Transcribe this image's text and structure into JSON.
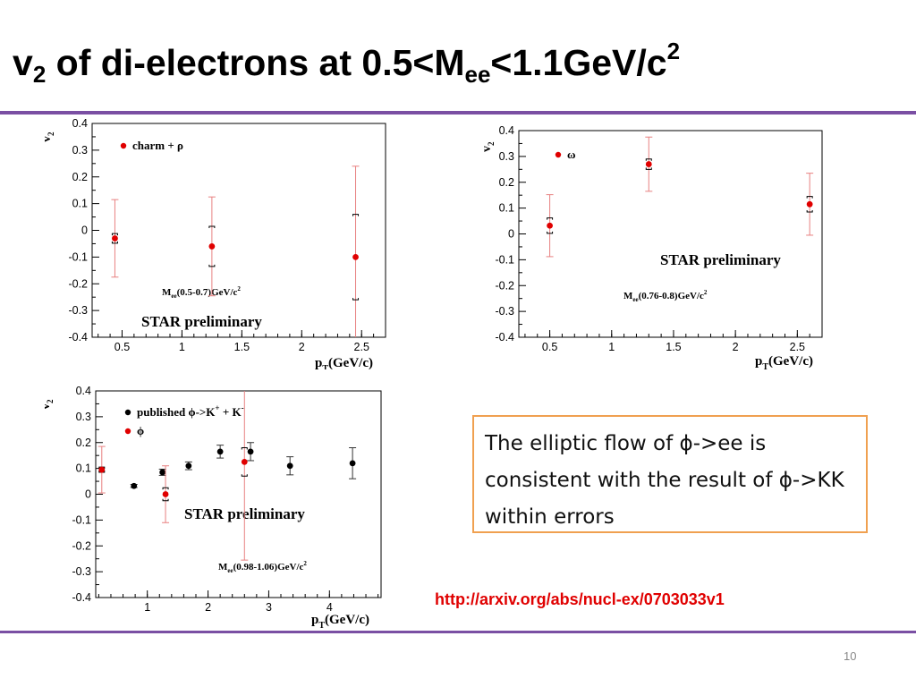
{
  "title": {
    "prefix": "v",
    "prefix_sub": "2",
    "mid": " of di-electrons at 0.5<M",
    "mid_sub": "ee",
    "end": "<1.1GeV/c",
    "end_sup": "2"
  },
  "note": {
    "text": "The elliptic flow of ϕ->ee is consistent with the result of ϕ->KK within errors"
  },
  "reference": {
    "url": "http://arxiv.org/abs/nucl-ex/0703033v1"
  },
  "page_number": "10",
  "colors": {
    "rule": "#7a4fa3",
    "red_marker": "#e00000",
    "black_marker": "#000000",
    "note_border": "#f0a050",
    "link": "#e00000"
  },
  "chart_data": [
    {
      "id": "charm-rho",
      "type": "scatter",
      "ylabel_main": "v",
      "ylabel_sub": "2",
      "xlabel_main": "p",
      "xlabel_sub": "T",
      "xlabel_rest": "(GeV/c)",
      "xlim": [
        0.25,
        2.7
      ],
      "ylim": [
        -0.4,
        0.4
      ],
      "xticks": [
        0.5,
        1,
        1.5,
        2,
        2.5
      ],
      "xtick_labels": [
        "0.5",
        "1",
        "1.5",
        "2",
        "2.5"
      ],
      "yticks": [
        -0.4,
        -0.3,
        -0.2,
        -0.1,
        0,
        0.1,
        0.2,
        0.3,
        0.4
      ],
      "ytick_labels": [
        "-0.4",
        "-0.3",
        "-0.2",
        "-0.1",
        "0",
        "0.1",
        "0.2",
        "0.3",
        "0.4"
      ],
      "legend": [
        {
          "label": "charm + ρ",
          "color": "#e00000"
        }
      ],
      "mass_label": {
        "pre": "M",
        "sub": "ee",
        "post": "(0.5-0.7)GeV/c",
        "sup": "2"
      },
      "star_label": "STAR preliminary",
      "series": [
        {
          "name": "charm + ρ",
          "color": "#e00000",
          "x": [
            0.44,
            1.25,
            2.45
          ],
          "y": [
            -0.03,
            -0.06,
            -0.1
          ],
          "yerr": [
            0.145,
            0.185,
            0.34
          ],
          "sys": [
            0.018,
            0.075,
            0.16
          ]
        }
      ]
    },
    {
      "id": "omega",
      "type": "scatter",
      "ylabel_main": "v",
      "ylabel_sub": "2",
      "xlabel_main": "p",
      "xlabel_sub": "T",
      "xlabel_rest": "(GeV/c)",
      "xlim": [
        0.25,
        2.7
      ],
      "ylim": [
        -0.4,
        0.4
      ],
      "xticks": [
        0.5,
        1,
        1.5,
        2,
        2.5
      ],
      "xtick_labels": [
        "0.5",
        "1",
        "1.5",
        "2",
        "2.5"
      ],
      "yticks": [
        -0.4,
        -0.3,
        -0.2,
        -0.1,
        0,
        0.1,
        0.2,
        0.3,
        0.4
      ],
      "ytick_labels": [
        "-0.4",
        "-0.3",
        "-0.2",
        "-0.1",
        "0",
        "0.1",
        "0.2",
        "0.3",
        "0.4"
      ],
      "legend": [
        {
          "label": "ω",
          "color": "#e00000"
        }
      ],
      "mass_label": {
        "pre": "M",
        "sub": "ee",
        "post": "(0.76-0.8)GeV/c",
        "sup": "2"
      },
      "star_label": "STAR preliminary",
      "series": [
        {
          "name": "ω",
          "color": "#e00000",
          "x": [
            0.5,
            1.3,
            2.6
          ],
          "y": [
            0.032,
            0.27,
            0.115
          ],
          "yerr": [
            0.12,
            0.105,
            0.12
          ],
          "sys": [
            0.03,
            0.02,
            0.03
          ]
        }
      ]
    },
    {
      "id": "phi",
      "type": "scatter",
      "ylabel_main": "v",
      "ylabel_sub": "2",
      "xlabel_main": "p",
      "xlabel_sub": "T",
      "xlabel_rest": "(GeV/c)",
      "xlim": [
        0.15,
        4.85
      ],
      "ylim": [
        -0.4,
        0.4
      ],
      "xticks": [
        1,
        2,
        3,
        4
      ],
      "xtick_labels": [
        "1",
        "2",
        "3",
        "4"
      ],
      "yticks": [
        -0.4,
        -0.3,
        -0.2,
        -0.1,
        0,
        0.1,
        0.2,
        0.3,
        0.4
      ],
      "ytick_labels": [
        "-0.4",
        "-0.3",
        "-0.2",
        "-0.1",
        "0",
        "0.1",
        "0.2",
        "0.3",
        "0.4"
      ],
      "legend": [
        {
          "label": "published ϕ->K+ + K-",
          "label_pre": "published ϕ->K",
          "label_sup1": "+",
          "label_mid": " + K",
          "label_sup2": "-",
          "color": "#000000"
        },
        {
          "label": "ϕ",
          "color": "#e00000"
        }
      ],
      "mass_label": {
        "pre": "M",
        "sub": "ee",
        "post": "(0.98-1.06)GeV/c",
        "sup": "2"
      },
      "star_label": "STAR preliminary",
      "series": [
        {
          "name": "published ϕ->K+ + K-",
          "color": "#000000",
          "x": [
            0.78,
            1.25,
            1.68,
            2.2,
            2.7,
            3.35,
            4.38
          ],
          "y": [
            0.032,
            0.085,
            0.11,
            0.165,
            0.165,
            0.11,
            0.12
          ],
          "yerr": [
            0.006,
            0.012,
            0.015,
            0.025,
            0.035,
            0.035,
            0.06
          ],
          "sys": [
            0,
            0,
            0,
            0,
            0,
            0,
            0
          ]
        },
        {
          "name": "ϕ",
          "color": "#e00000",
          "x": [
            0.25,
            1.3,
            2.6
          ],
          "y": [
            0.095,
            0.0,
            0.125
          ],
          "yerr": [
            0.09,
            0.11,
            0.38
          ],
          "sys": [
            0.01,
            0.025,
            0.055
          ]
        }
      ]
    }
  ]
}
